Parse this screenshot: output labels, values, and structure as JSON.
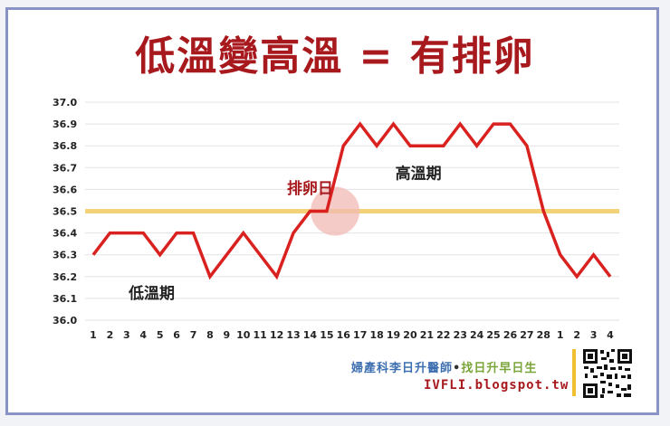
{
  "title": "低溫變高溫 = 有排卵",
  "credit_doctor": "婦產科李日升醫師",
  "credit_dot": "•",
  "credit_slogan": "找日升早日生",
  "credit_url": "IVFLI.blogspot.tw",
  "colors": {
    "line": "#d9221f",
    "title": "#a8191e",
    "threshold": "#f4d27a",
    "highlight": "#f2b9b4",
    "grid": "#e3e3e3"
  },
  "chart_data": {
    "type": "line",
    "categories": [
      "1",
      "2",
      "3",
      "4",
      "5",
      "6",
      "7",
      "8",
      "9",
      "10",
      "11",
      "12",
      "13",
      "14",
      "15",
      "16",
      "17",
      "18",
      "19",
      "20",
      "21",
      "22",
      "23",
      "24",
      "25",
      "26",
      "27",
      "28",
      "1",
      "2",
      "3",
      "4"
    ],
    "values": [
      36.3,
      36.4,
      36.4,
      36.4,
      36.3,
      36.4,
      36.4,
      36.2,
      36.3,
      36.4,
      36.3,
      36.2,
      36.4,
      36.5,
      36.5,
      36.8,
      36.9,
      36.8,
      36.9,
      36.8,
      36.8,
      36.8,
      36.9,
      36.8,
      36.9,
      36.9,
      36.8,
      36.5,
      36.3,
      36.2,
      36.3,
      36.2
    ],
    "ylim": [
      36.0,
      37.0
    ],
    "yticks": [
      "36.0",
      "36.1",
      "36.2",
      "36.3",
      "36.4",
      "36.5",
      "36.6",
      "36.7",
      "36.8",
      "36.9",
      "37.0"
    ],
    "threshold": 36.5,
    "grid": true,
    "annotations": [
      {
        "text": "高溫期",
        "x_index": 19.5,
        "y": 36.65
      },
      {
        "text": "排卵日",
        "x_index": 13.0,
        "y": 36.58
      },
      {
        "text": "低溫期",
        "x_index": 3.5,
        "y": 36.1
      }
    ],
    "highlight_index": 14.5
  }
}
